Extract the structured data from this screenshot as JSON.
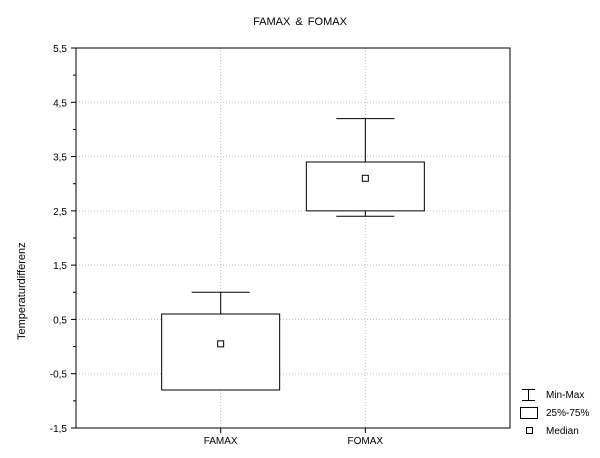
{
  "chart_data": {
    "type": "box",
    "title": "FAMAX &   FOMAX",
    "ylabel": "Temperaturdifferenz",
    "xlabel": "",
    "categories": [
      "FAMAX",
      "FOMAX"
    ],
    "ylim": [
      -1.5,
      5.5
    ],
    "yticks": [
      "5,5",
      "4,5",
      "3,5",
      "2,5",
      "1,5",
      "0,5",
      "-0,5",
      "-1,5"
    ],
    "ytick_values": [
      5.5,
      4.5,
      3.5,
      2.5,
      1.5,
      0.5,
      -0.5,
      -1.5
    ],
    "boxes": [
      {
        "category": "FAMAX",
        "min": -0.8,
        "q1": -0.8,
        "median": 0.05,
        "q3": 0.6,
        "max": 1.0
      },
      {
        "category": "FOMAX",
        "min": 2.4,
        "q1": 2.5,
        "median": 3.1,
        "q3": 3.4,
        "max": 4.2
      }
    ],
    "grid": true,
    "legend": {
      "placement": "bottom-right",
      "items": [
        "Min-Max",
        "25%-75%",
        "Median"
      ]
    }
  }
}
